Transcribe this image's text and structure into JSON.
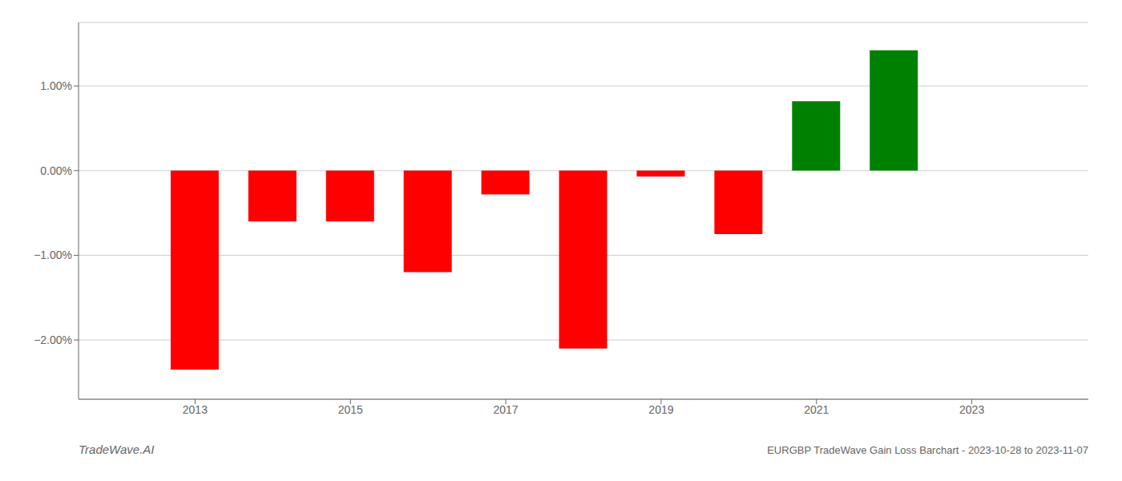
{
  "chart_data": {
    "type": "bar",
    "x": [
      2013,
      2014,
      2015,
      2016,
      2017,
      2018,
      2019,
      2020,
      2021,
      2022
    ],
    "values": [
      -2.35,
      -0.6,
      -0.6,
      -1.2,
      -0.28,
      -2.1,
      -0.07,
      -0.75,
      0.82,
      1.42
    ],
    "colors": [
      "#ff0000",
      "#ff0000",
      "#ff0000",
      "#ff0000",
      "#ff0000",
      "#ff0000",
      "#ff0000",
      "#ff0000",
      "#008000",
      "#008000"
    ],
    "xlim": [
      2011.5,
      2024.5
    ],
    "xticks": [
      2013,
      2015,
      2017,
      2019,
      2021,
      2023
    ],
    "ylim": [
      -2.7,
      1.75
    ],
    "yticks": [
      {
        "value": -2.0,
        "label": "−2.00%"
      },
      {
        "value": -1.0,
        "label": "−1.00%"
      },
      {
        "value": 0.0,
        "label": "0.00%"
      },
      {
        "value": 1.0,
        "label": "1.00%"
      }
    ],
    "grid": "y",
    "annotations": [
      "TradeWave.AI",
      "EURGBP TradeWave Gain Loss Barchart - 2023-10-28 to 2023-11-07"
    ]
  }
}
